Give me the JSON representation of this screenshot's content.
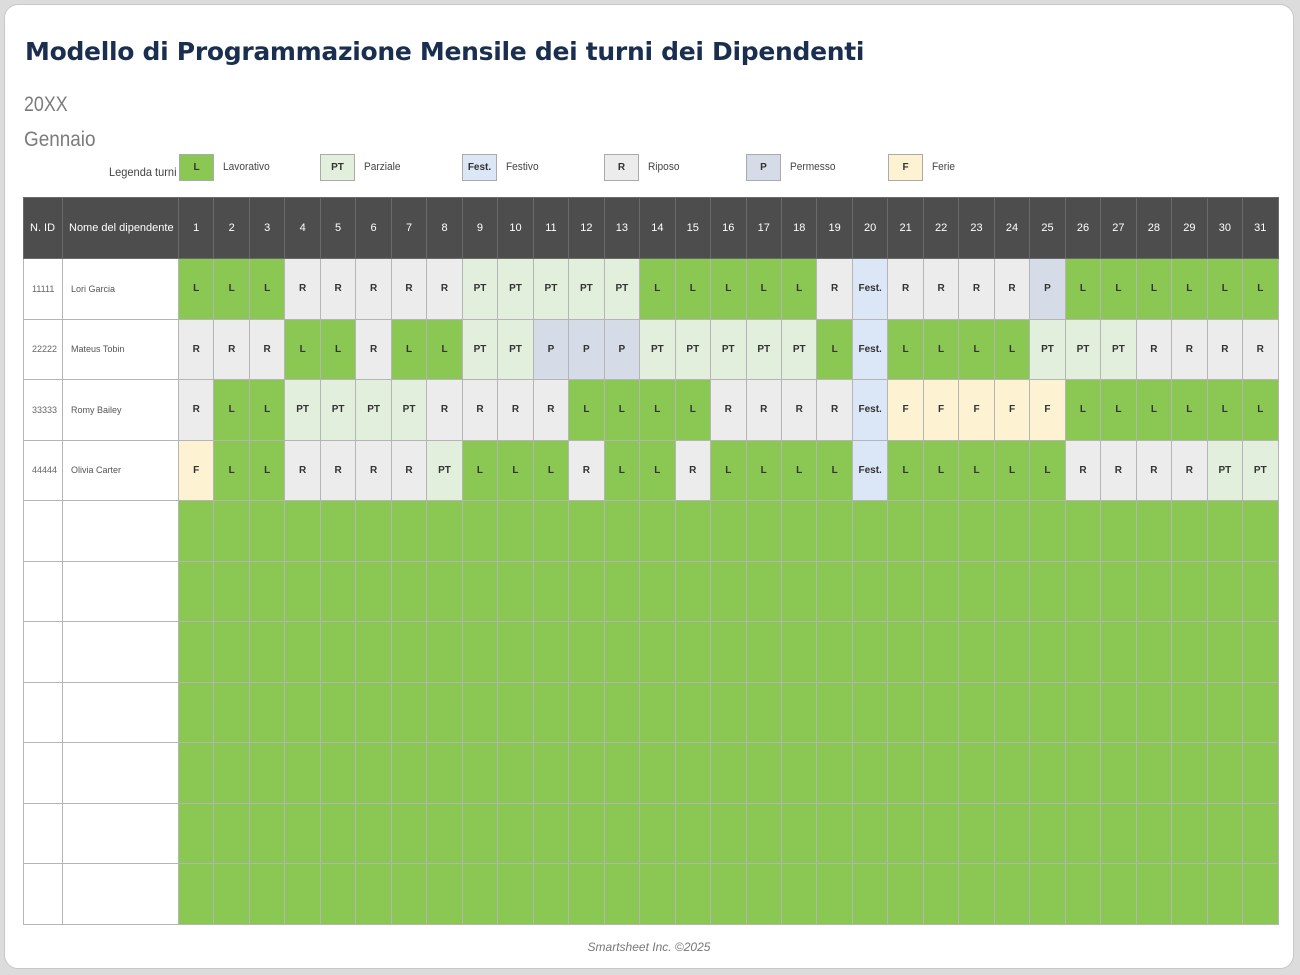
{
  "title": "Modello di Programmazione Mensile dei turni dei Dipendenti",
  "year": "20XX",
  "month": "Gennaio",
  "legend": {
    "title": "Legenda turni",
    "items": [
      {
        "code": "L",
        "label": "Lavorativo",
        "color": "#8bc853"
      },
      {
        "code": "PT",
        "label": "Parziale",
        "color": "#e2efdc"
      },
      {
        "code": "Fest.",
        "label": "Festivo",
        "color": "#dbe6f7"
      },
      {
        "code": "R",
        "label": "Riposo",
        "color": "#ececec"
      },
      {
        "code": "P",
        "label": "Permesso",
        "color": "#d5dbe7"
      },
      {
        "code": "F",
        "label": "Ferie",
        "color": "#fdf2d2"
      }
    ]
  },
  "table": {
    "id_header": "N. ID",
    "name_header": "Nome del dipendente",
    "days": [
      "1",
      "2",
      "3",
      "4",
      "5",
      "6",
      "7",
      "8",
      "9",
      "10",
      "11",
      "12",
      "13",
      "14",
      "15",
      "16",
      "17",
      "18",
      "19",
      "20",
      "21",
      "22",
      "23",
      "24",
      "25",
      "26",
      "27",
      "28",
      "29",
      "30",
      "31"
    ],
    "employees": [
      {
        "id": "11111",
        "name": "Lori Garcia",
        "shifts": [
          "L",
          "L",
          "L",
          "R",
          "R",
          "R",
          "R",
          "R",
          "PT",
          "PT",
          "PT",
          "PT",
          "PT",
          "L",
          "L",
          "L",
          "L",
          "L",
          "R",
          "Fest.",
          "R",
          "R",
          "R",
          "R",
          "P",
          "L",
          "L",
          "L",
          "L",
          "L",
          "L"
        ]
      },
      {
        "id": "22222",
        "name": "Mateus Tobin",
        "shifts": [
          "R",
          "R",
          "R",
          "L",
          "L",
          "R",
          "L",
          "L",
          "PT",
          "PT",
          "P",
          "P",
          "P",
          "PT",
          "PT",
          "PT",
          "PT",
          "PT",
          "L",
          "Fest.",
          "L",
          "L",
          "L",
          "L",
          "PT",
          "PT",
          "PT",
          "R",
          "R",
          "R",
          "R"
        ]
      },
      {
        "id": "33333",
        "name": "Romy Bailey",
        "shifts": [
          "R",
          "L",
          "L",
          "PT",
          "PT",
          "PT",
          "PT",
          "R",
          "R",
          "R",
          "R",
          "L",
          "L",
          "L",
          "L",
          "R",
          "R",
          "R",
          "R",
          "Fest.",
          "F",
          "F",
          "F",
          "F",
          "F",
          "L",
          "L",
          "L",
          "L",
          "L",
          "L"
        ]
      },
      {
        "id": "44444",
        "name": "Olivia Carter",
        "shifts": [
          "F",
          "L",
          "L",
          "R",
          "R",
          "R",
          "R",
          "PT",
          "L",
          "L",
          "L",
          "R",
          "L",
          "L",
          "R",
          "L",
          "L",
          "L",
          "L",
          "Fest.",
          "L",
          "L",
          "L",
          "L",
          "L",
          "R",
          "R",
          "R",
          "R",
          "PT",
          "PT"
        ]
      }
    ],
    "empty_rows": 7
  },
  "footer": "Smartsheet Inc. ©2025"
}
